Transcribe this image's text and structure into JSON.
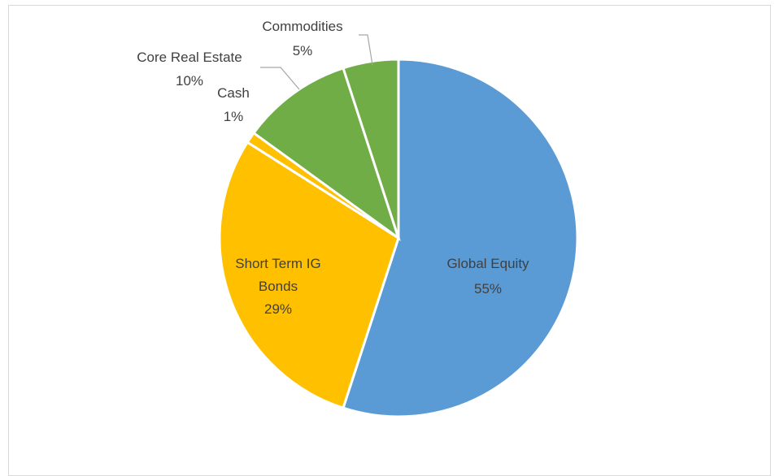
{
  "chart_data": {
    "type": "pie",
    "title": "",
    "start_angle_deg": 0,
    "direction": "clockwise",
    "slices": [
      {
        "name": "Global Equity",
        "value": 55,
        "value_label": "55%",
        "color": "#5b9bd5",
        "name_lines": [
          "Global Equity"
        ]
      },
      {
        "name": "Short Term IG Bonds",
        "value": 29,
        "value_label": "29%",
        "color": "#ffc000",
        "name_lines": [
          "Short Term IG",
          "Bonds"
        ]
      },
      {
        "name": "Cash",
        "value": 1,
        "value_label": "1%",
        "color": "#ffc000",
        "name_lines": [
          "Cash"
        ]
      },
      {
        "name": "Core Real Estate",
        "value": 10,
        "value_label": "10%",
        "color": "#70ad47",
        "name_lines": [
          "Core Real Estate"
        ]
      },
      {
        "name": "Commodities",
        "value": 5,
        "value_label": "5%",
        "color": "#70ad47",
        "name_lines": [
          "Commodities"
        ]
      }
    ]
  }
}
